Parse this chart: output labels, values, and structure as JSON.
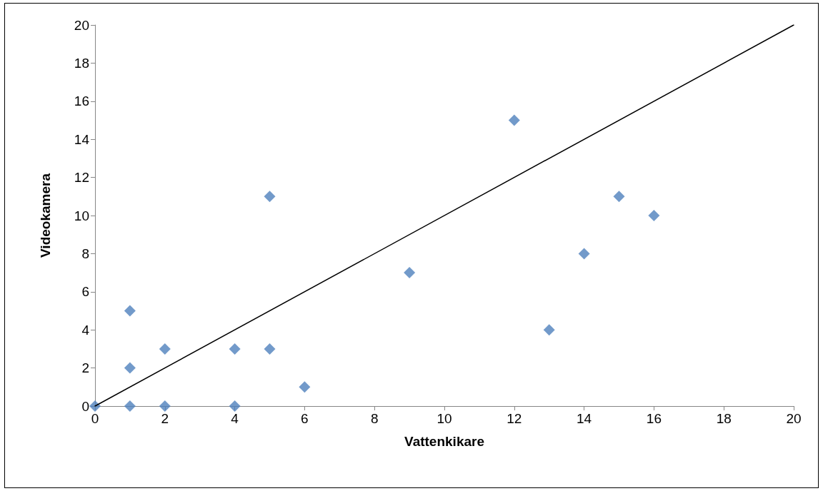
{
  "chart_data": {
    "type": "scatter",
    "xlabel": "Vattenkikare",
    "ylabel": "Videokamera",
    "xlim": [
      0,
      20
    ],
    "xticks": [
      0,
      2,
      4,
      6,
      8,
      10,
      12,
      14,
      16,
      18,
      20
    ],
    "ylim": [
      0,
      20
    ],
    "yticks": [
      0,
      2,
      4,
      6,
      8,
      10,
      12,
      14,
      16,
      18,
      20
    ],
    "grid": false,
    "marker": "diamond",
    "series": [
      {
        "color": "#4f81bd",
        "x": [
          0,
          1,
          1,
          1,
          2,
          2,
          4,
          4,
          5,
          5,
          6,
          9,
          12,
          13,
          14,
          15,
          16
        ],
        "values": [
          0,
          0,
          2,
          5,
          3,
          0,
          3,
          0,
          11,
          3,
          1,
          7,
          15,
          4,
          8,
          11,
          10
        ]
      },
      {
        "type": "line",
        "color": "#000000",
        "marker": "none",
        "line_style": "solid",
        "x": [
          0,
          20
        ],
        "values": [
          0,
          20
        ]
      }
    ]
  }
}
